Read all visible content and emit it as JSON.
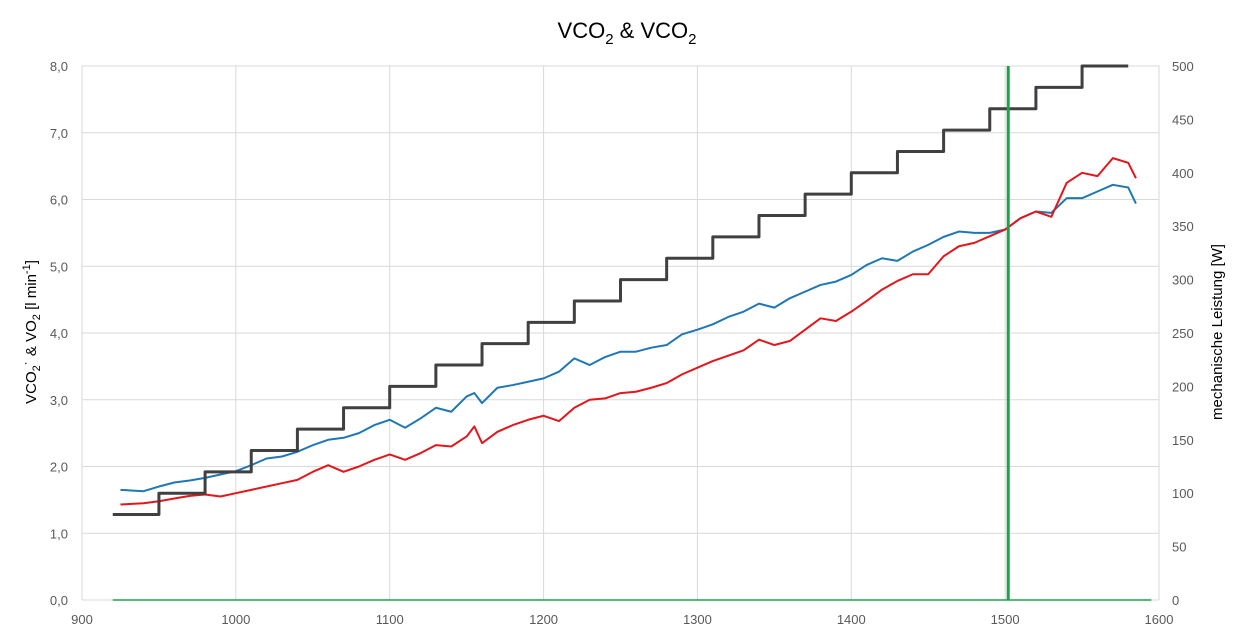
{
  "chart_data": {
    "type": "line",
    "title": "VCO₂ & VCO₂",
    "title_parts": {
      "a": "VCO",
      "sub_a": "2",
      "amp": " & ",
      "b": "VCO",
      "sub_b": "2"
    },
    "ylabel_parts": {
      "a": "VCO",
      "sub_a": "2",
      "dot": "˙",
      "amp": " & VO",
      "sub_b": "2",
      "unit": " [l min",
      "sup": "-1",
      "close": "]"
    },
    "ylabel": "VCO₂˙ & VO₂ [l min⁻¹]",
    "y2label": "mechanische Leistung [W]",
    "xlabel": "",
    "xlim": [
      900,
      1600
    ],
    "ylim": [
      0,
      8
    ],
    "y2lim": [
      0,
      500
    ],
    "xticks": [
      "900",
      "1000",
      "1100",
      "1200",
      "1300",
      "1400",
      "1500",
      "1600"
    ],
    "yticks": [
      "0,0",
      "1,0",
      "2,0",
      "3,0",
      "4,0",
      "5,0",
      "6,0",
      "7,0",
      "8,0"
    ],
    "y2ticks": [
      "0",
      "50",
      "100",
      "150",
      "200",
      "250",
      "300",
      "350",
      "400",
      "450",
      "500"
    ],
    "grid": true,
    "legend": "none",
    "colors": {
      "vo2": "#1f77b4",
      "vco2": "#e3161b",
      "power": "#404040",
      "marker": "#1aa34a",
      "grid": "#d9d9d9"
    },
    "marker_x": 1502,
    "series": [
      {
        "key": "vo2",
        "axis": "left",
        "color": "#1f77b4",
        "x": [
          925,
          940,
          950,
          960,
          970,
          980,
          990,
          1000,
          1010,
          1020,
          1030,
          1040,
          1050,
          1060,
          1070,
          1080,
          1090,
          1100,
          1110,
          1120,
          1130,
          1140,
          1150,
          1155,
          1160,
          1170,
          1180,
          1190,
          1200,
          1210,
          1220,
          1230,
          1240,
          1250,
          1260,
          1270,
          1280,
          1290,
          1300,
          1310,
          1320,
          1330,
          1340,
          1350,
          1360,
          1370,
          1380,
          1390,
          1400,
          1410,
          1420,
          1430,
          1440,
          1450,
          1460,
          1470,
          1480,
          1490,
          1500,
          1510,
          1520,
          1530,
          1540,
          1550,
          1560,
          1570,
          1580,
          1585
        ],
        "values": [
          1.65,
          1.63,
          1.7,
          1.76,
          1.79,
          1.83,
          1.88,
          1.93,
          2.02,
          2.12,
          2.15,
          2.22,
          2.32,
          2.4,
          2.43,
          2.5,
          2.62,
          2.7,
          2.58,
          2.72,
          2.88,
          2.82,
          3.05,
          3.1,
          2.95,
          3.18,
          3.22,
          3.27,
          3.32,
          3.42,
          3.62,
          3.52,
          3.64,
          3.72,
          3.72,
          3.78,
          3.82,
          3.98,
          4.05,
          4.13,
          4.24,
          4.32,
          4.44,
          4.38,
          4.52,
          4.62,
          4.72,
          4.77,
          4.87,
          5.02,
          5.12,
          5.08,
          5.22,
          5.32,
          5.44,
          5.52,
          5.5,
          5.5,
          5.55,
          5.72,
          5.82,
          5.8,
          6.02,
          6.02,
          6.12,
          6.22,
          6.18,
          5.94
        ]
      },
      {
        "key": "vco2",
        "axis": "left",
        "color": "#e3161b",
        "x": [
          925,
          940,
          950,
          960,
          970,
          980,
          990,
          1000,
          1010,
          1020,
          1030,
          1040,
          1050,
          1060,
          1070,
          1080,
          1090,
          1100,
          1110,
          1120,
          1130,
          1140,
          1150,
          1155,
          1160,
          1170,
          1180,
          1190,
          1200,
          1210,
          1220,
          1230,
          1240,
          1250,
          1260,
          1270,
          1280,
          1290,
          1300,
          1310,
          1320,
          1330,
          1340,
          1350,
          1360,
          1370,
          1380,
          1390,
          1400,
          1410,
          1420,
          1430,
          1440,
          1450,
          1460,
          1470,
          1480,
          1490,
          1500,
          1510,
          1520,
          1530,
          1540,
          1550,
          1560,
          1570,
          1580,
          1585
        ],
        "values": [
          1.43,
          1.45,
          1.48,
          1.52,
          1.56,
          1.58,
          1.55,
          1.6,
          1.65,
          1.7,
          1.75,
          1.8,
          1.92,
          2.02,
          1.92,
          2.0,
          2.1,
          2.18,
          2.1,
          2.2,
          2.32,
          2.3,
          2.45,
          2.6,
          2.35,
          2.52,
          2.62,
          2.7,
          2.76,
          2.68,
          2.88,
          3.0,
          3.02,
          3.1,
          3.12,
          3.18,
          3.25,
          3.38,
          3.48,
          3.58,
          3.66,
          3.74,
          3.9,
          3.82,
          3.88,
          4.05,
          4.22,
          4.18,
          4.32,
          4.48,
          4.65,
          4.78,
          4.88,
          4.88,
          5.15,
          5.3,
          5.35,
          5.45,
          5.55,
          5.72,
          5.82,
          5.74,
          6.25,
          6.4,
          6.35,
          6.62,
          6.55,
          6.32
        ]
      },
      {
        "key": "power",
        "axis": "right",
        "color": "#404040",
        "step": true,
        "x": [
          920,
          950,
          980,
          1010,
          1040,
          1070,
          1100,
          1130,
          1160,
          1190,
          1220,
          1250,
          1280,
          1310,
          1340,
          1370,
          1400,
          1430,
          1460,
          1490,
          1520,
          1550,
          1580
        ],
        "values": [
          80,
          100,
          120,
          140,
          160,
          180,
          200,
          220,
          240,
          260,
          280,
          300,
          320,
          340,
          360,
          380,
          400,
          420,
          440,
          460,
          480,
          500,
          500
        ]
      }
    ]
  }
}
